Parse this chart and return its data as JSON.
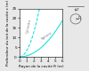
{
  "xlabel": "Rayon de la cavité R (m)",
  "ylabel": "Profondeur du toit de la cavité z (m)",
  "xlim": [
    0,
    6
  ],
  "ylim": [
    0,
    25
  ],
  "xticks": [
    0,
    1,
    2,
    3,
    4,
    5,
    6
  ],
  "yticks": [
    0,
    5,
    10,
    15,
    20,
    25
  ],
  "curve_color": "#00dddd",
  "label_cylindre": "Cylindre",
  "label_sphere": "Sphère",
  "bg_color": "#e8e8e8",
  "axes_bg": "#ffffff",
  "cylindre_coeff": 3.2,
  "cylindre_power": 2.0,
  "sphere_coeff": 0.52,
  "sphere_power": 2.0
}
